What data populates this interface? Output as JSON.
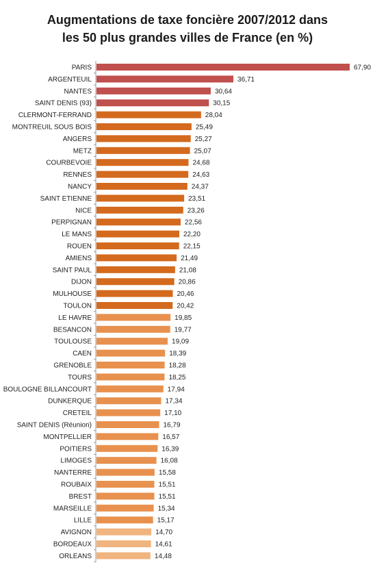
{
  "chart_data": {
    "type": "bar",
    "orientation": "horizontal",
    "title_lines": [
      "Augmentations de taxe foncière 2007/2012 dans",
      "les 50 plus grandes villes de France (en %)"
    ],
    "categories": [
      "PARIS",
      "ARGENTEUIL",
      "NANTES",
      "SAINT DENIS (93)",
      "CLERMONT-FERRAND",
      "MONTREUIL SOUS BOIS",
      "ANGERS",
      "METZ",
      "COURBEVOIE",
      "RENNES",
      "NANCY",
      "SAINT ETIENNE",
      "NICE",
      "PERPIGNAN",
      "LE MANS",
      "ROUEN",
      "AMIENS",
      "SAINT PAUL",
      "DIJON",
      "MULHOUSE",
      "TOULON",
      "LE HAVRE",
      "BESANCON",
      "TOULOUSE",
      "CAEN",
      "GRENOBLE",
      "TOURS",
      "BOULOGNE BILLANCOURT",
      "DUNKERQUE",
      "CRETEIL",
      "SAINT DENIS (Réunion)",
      "MONTPELLIER",
      "POITIERS",
      "LIMOGES",
      "NANTERRE",
      "ROUBAIX",
      "BREST",
      "MARSEILLE",
      "LILLE",
      "AVIGNON",
      "BORDEAUX",
      "ORLEANS"
    ],
    "values": [
      67.9,
      36.71,
      30.64,
      30.15,
      28.04,
      25.49,
      25.27,
      25.07,
      24.68,
      24.63,
      24.37,
      23.51,
      23.26,
      22.56,
      22.2,
      22.15,
      21.49,
      21.08,
      20.86,
      20.46,
      20.42,
      19.85,
      19.77,
      19.09,
      18.39,
      18.28,
      18.25,
      17.94,
      17.34,
      17.1,
      16.79,
      16.57,
      16.39,
      16.08,
      15.58,
      15.51,
      15.51,
      15.34,
      15.17,
      14.7,
      14.61,
      14.48
    ],
    "value_labels": [
      "67,90",
      "36,71",
      "30,64",
      "30,15",
      "28,04",
      "25,49",
      "25,27",
      "25,07",
      "24,68",
      "24,63",
      "24,37",
      "23,51",
      "23,26",
      "22,56",
      "22,20",
      "22,15",
      "21,49",
      "21,08",
      "20,86",
      "20,46",
      "20,42",
      "19,85",
      "19,77",
      "19,09",
      "18,39",
      "18,28",
      "18,25",
      "17,94",
      "17,34",
      "17,10",
      "16,79",
      "16,57",
      "16,39",
      "16,08",
      "15,58",
      "15,51",
      "15,51",
      "15,34",
      "15,17",
      "14,70",
      "14,61",
      "14,48"
    ],
    "xlim": [
      0,
      67.9
    ],
    "grid": false,
    "legend": "none",
    "colors": {
      "top": "#c0504d",
      "high": "#d46a1e",
      "mid": "#e8914e",
      "low": "#f0b47e",
      "axis": "#999999",
      "label": "#222222"
    }
  }
}
